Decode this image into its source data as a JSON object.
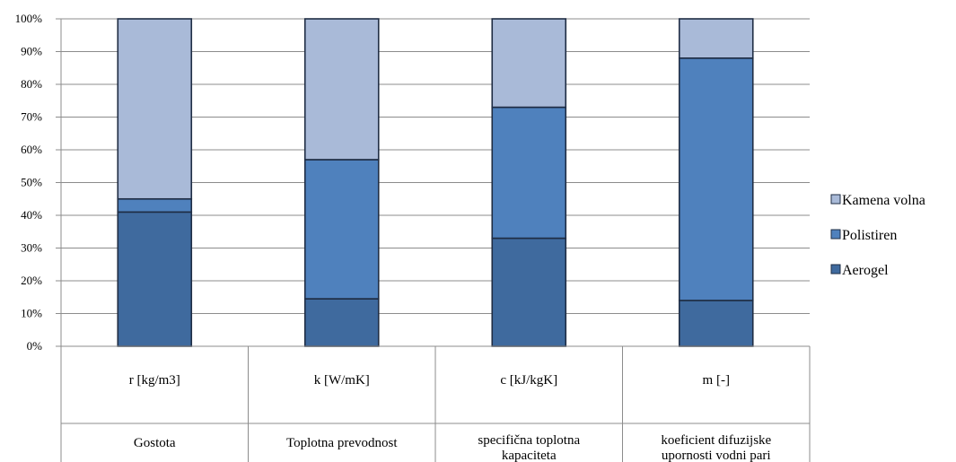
{
  "chart_data": {
    "type": "bar",
    "stacked": "percent",
    "title": "",
    "xlabel": "",
    "ylabel": "",
    "ylim": [
      0,
      100
    ],
    "yticks": [
      "0%",
      "10%",
      "20%",
      "30%",
      "40%",
      "50%",
      "60%",
      "70%",
      "80%",
      "90%",
      "100%"
    ],
    "grid": true,
    "legend_position": "right",
    "categories": [
      {
        "label": "r [kg/m3]",
        "group": "Gostota"
      },
      {
        "label": "k [W/mK]",
        "group": "Toplotna prevodnost"
      },
      {
        "label": "c [kJ/kgK]",
        "group": "specifična toplotna kapaciteta"
      },
      {
        "label": "m [-]",
        "group": "koeficient difuzijske upornosti vodni pari"
      }
    ],
    "series": [
      {
        "name": "Aerogel",
        "color": "#3F6A9E",
        "values": [
          41,
          14.5,
          33,
          14
        ]
      },
      {
        "name": "Polistiren",
        "color": "#4F81BD",
        "values": [
          4,
          42.5,
          40,
          74
        ]
      },
      {
        "name": "Kamena volna",
        "color": "#A9BAD8",
        "values": [
          55,
          43,
          27,
          12
        ]
      }
    ],
    "legend_order": [
      "Kamena volna",
      "Polistiren",
      "Aerogel"
    ]
  }
}
